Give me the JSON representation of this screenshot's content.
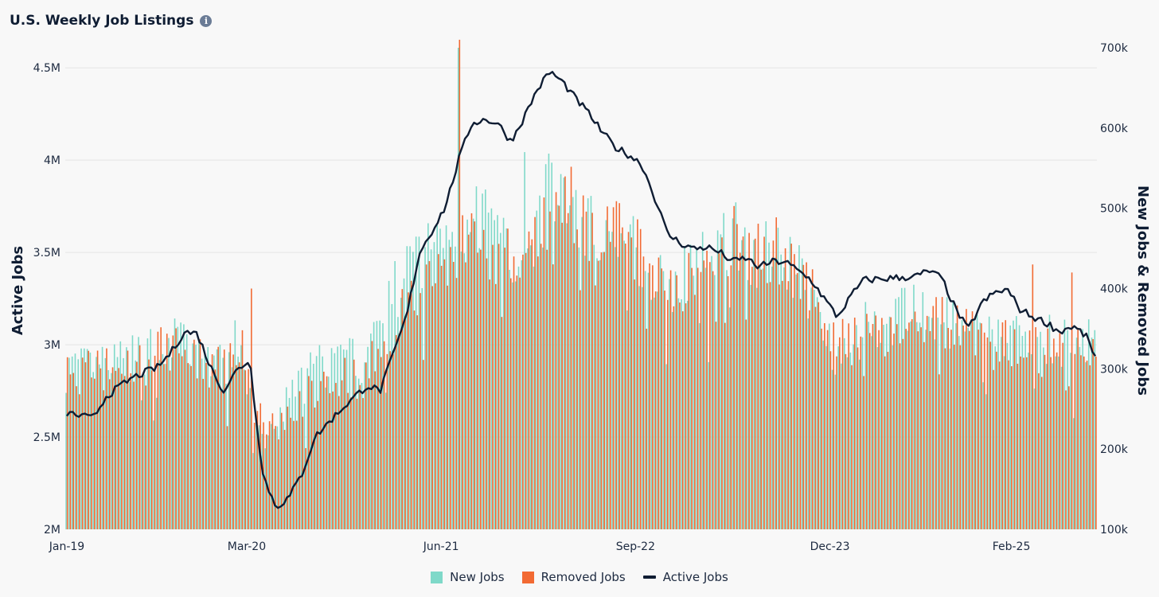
{
  "header": {
    "title": "U.S. Weekly Job Listings",
    "info_icon": "info-icon"
  },
  "colors": {
    "new_jobs": "#7fd9c9",
    "removed_jobs": "#f26a33",
    "active_jobs": "#0f1d33",
    "grid": "#e4e4e4"
  },
  "legend": {
    "items": [
      {
        "label": "New Jobs",
        "color": "#7fd9c9",
        "shape": "box"
      },
      {
        "label": "Removed Jobs",
        "color": "#f26a33",
        "shape": "box"
      },
      {
        "label": "Active Jobs",
        "color": "#0f1d33",
        "shape": "line"
      }
    ]
  },
  "chart_data": {
    "type": "bar",
    "combo": "bars (right axis) + line (left axis)",
    "title": "U.S. Weekly Job Listings",
    "frequency": "weekly",
    "x_ticks": [
      "Jan-19",
      "Mar-20",
      "Jun-21",
      "Sep-22",
      "Dec-23",
      "Feb-25"
    ],
    "ylabel_left": "Active Jobs",
    "ylabel_right": "New Jobs & Removed Jobs",
    "ylim_left": [
      2000000,
      4600000
    ],
    "ylim_right": [
      100000,
      700000
    ],
    "left_ticks": [
      {
        "v": 2000000,
        "label": "2M"
      },
      {
        "v": 2500000,
        "label": "2.5M"
      },
      {
        "v": 3000000,
        "label": "3M"
      },
      {
        "v": 3500000,
        "label": "3.5M"
      },
      {
        "v": 4000000,
        "label": "4M"
      },
      {
        "v": 4500000,
        "label": "4.5M"
      }
    ],
    "right_ticks": [
      {
        "v": 100000,
        "label": "100k"
      },
      {
        "v": 200000,
        "label": "200k"
      },
      {
        "v": 300000,
        "label": "300k"
      },
      {
        "v": 400000,
        "label": "400k"
      },
      {
        "v": 500000,
        "label": "500k"
      },
      {
        "v": 600000,
        "label": "600k"
      },
      {
        "v": 700000,
        "label": "700k"
      }
    ],
    "grid": true,
    "legend_position": "bottom-center",
    "series": [
      {
        "name": "New Jobs",
        "axis": "right",
        "keyframes": [
          [
            "Jan-19",
            300000
          ],
          [
            "Mar-19",
            300000
          ],
          [
            "Jun-19",
            310000
          ],
          [
            "Sep-19",
            340000
          ],
          [
            "Nov-19",
            320000
          ],
          [
            "Jan-20",
            300000
          ],
          [
            "Feb-20",
            330000
          ],
          [
            "Mar-20",
            280000
          ],
          [
            "Apr-20",
            200000
          ],
          [
            "Jun-20",
            260000
          ],
          [
            "Aug-20",
            300000
          ],
          [
            "Oct-20",
            310000
          ],
          [
            "Dec-20",
            310000
          ],
          [
            "Jan-21",
            360000
          ],
          [
            "Mar-21",
            420000
          ],
          [
            "Jun-21",
            470000
          ],
          [
            "Jul-21",
            490000
          ],
          [
            "Aug-21",
            470000
          ],
          [
            "Sep-21",
            500000
          ],
          [
            "Oct-21",
            460000
          ],
          [
            "Dec-21",
            440000
          ],
          [
            "Feb-22",
            520000
          ],
          [
            "Mar-22",
            530000
          ],
          [
            "Apr-22",
            490000
          ],
          [
            "Jun-22",
            470000
          ],
          [
            "Aug-22",
            460000
          ],
          [
            "Sep-22",
            440000
          ],
          [
            "Nov-22",
            400000
          ],
          [
            "Jan-23",
            420000
          ],
          [
            "Mar-23",
            450000
          ],
          [
            "Apr-23",
            470000
          ],
          [
            "Jun-23",
            440000
          ],
          [
            "Jul-23",
            450000
          ],
          [
            "Sep-23",
            420000
          ],
          [
            "Oct-23",
            390000
          ],
          [
            "Dec-23",
            320000
          ],
          [
            "Feb-24",
            350000
          ],
          [
            "Apr-24",
            360000
          ],
          [
            "Jun-24",
            370000
          ],
          [
            "Aug-24",
            360000
          ],
          [
            "Oct-24",
            340000
          ],
          [
            "Dec-24",
            340000
          ],
          [
            "Feb-25",
            340000
          ],
          [
            "Apr-25",
            340000
          ],
          [
            "Jun-25",
            330000
          ],
          [
            "Aug-25",
            330000
          ]
        ],
        "spikes": [
          [
            "Jul-21",
            700000
          ],
          [
            "Dec-21",
            570000
          ]
        ]
      },
      {
        "name": "Removed Jobs",
        "axis": "right",
        "keyframes": [
          [
            "Jan-19",
            290000
          ],
          [
            "Mar-19",
            300000
          ],
          [
            "Jun-19",
            300000
          ],
          [
            "Sep-19",
            330000
          ],
          [
            "Nov-19",
            310000
          ],
          [
            "Jan-20",
            300000
          ],
          [
            "Feb-20",
            310000
          ],
          [
            "Mar-20",
            330000
          ],
          [
            "Apr-20",
            220000
          ],
          [
            "Jun-20",
            240000
          ],
          [
            "Aug-20",
            280000
          ],
          [
            "Oct-20",
            290000
          ],
          [
            "Dec-20",
            290000
          ],
          [
            "Jan-21",
            340000
          ],
          [
            "Mar-21",
            380000
          ],
          [
            "Jun-21",
            430000
          ],
          [
            "Jul-21",
            460000
          ],
          [
            "Aug-21",
            460000
          ],
          [
            "Sep-21",
            470000
          ],
          [
            "Oct-21",
            440000
          ],
          [
            "Dec-21",
            430000
          ],
          [
            "Feb-22",
            500000
          ],
          [
            "Mar-22",
            520000
          ],
          [
            "Apr-22",
            490000
          ],
          [
            "Jun-22",
            470000
          ],
          [
            "Aug-22",
            460000
          ],
          [
            "Sep-22",
            450000
          ],
          [
            "Nov-22",
            410000
          ],
          [
            "Jan-23",
            410000
          ],
          [
            "Mar-23",
            440000
          ],
          [
            "Apr-23",
            460000
          ],
          [
            "Jun-23",
            450000
          ],
          [
            "Jul-23",
            450000
          ],
          [
            "Sep-23",
            430000
          ],
          [
            "Oct-23",
            400000
          ],
          [
            "Dec-23",
            330000
          ],
          [
            "Feb-24",
            340000
          ],
          [
            "Apr-24",
            350000
          ],
          [
            "Jun-24",
            360000
          ],
          [
            "Aug-24",
            360000
          ],
          [
            "Oct-24",
            340000
          ],
          [
            "Dec-24",
            330000
          ],
          [
            "Feb-25",
            330000
          ],
          [
            "Apr-25",
            320000
          ],
          [
            "Jun-25",
            330000
          ],
          [
            "Aug-25",
            330000
          ]
        ],
        "spikes": [
          [
            "Jul-21",
            710000
          ],
          [
            "Mar-20",
            400000
          ],
          [
            "Mar-25",
            430000
          ],
          [
            "Jun-25",
            420000
          ]
        ]
      },
      {
        "name": "Active Jobs",
        "axis": "left",
        "keyframes": [
          [
            "Jan-19",
            2630000
          ],
          [
            "Mar-19",
            2600000
          ],
          [
            "Apr-19",
            2720000
          ],
          [
            "Jun-19",
            2820000
          ],
          [
            "Aug-19",
            2880000
          ],
          [
            "Sep-19",
            2960000
          ],
          [
            "Oct-19",
            3070000
          ],
          [
            "Nov-19",
            3060000
          ],
          [
            "Dec-19",
            2880000
          ],
          [
            "Jan-20",
            2750000
          ],
          [
            "Feb-20",
            2860000
          ],
          [
            "Mar-20",
            2920000
          ],
          [
            "Apr-20",
            2300000
          ],
          [
            "May-20",
            2120000
          ],
          [
            "Jun-20",
            2170000
          ],
          [
            "Jul-20",
            2300000
          ],
          [
            "Aug-20",
            2500000
          ],
          [
            "Oct-20",
            2650000
          ],
          [
            "Dec-20",
            2780000
          ],
          [
            "Jan-21",
            2750000
          ],
          [
            "Feb-21",
            2950000
          ],
          [
            "Mar-21",
            3150000
          ],
          [
            "Apr-21",
            3500000
          ],
          [
            "May-21",
            3620000
          ],
          [
            "Jun-21",
            3750000
          ],
          [
            "Jul-21",
            4000000
          ],
          [
            "Aug-21",
            4200000
          ],
          [
            "Sep-21",
            4220000
          ],
          [
            "Oct-21",
            4200000
          ],
          [
            "Nov-21",
            4100000
          ],
          [
            "Dec-21",
            4230000
          ],
          [
            "Jan-22",
            4380000
          ],
          [
            "Feb-22",
            4480000
          ],
          [
            "Mar-22",
            4420000
          ],
          [
            "Apr-22",
            4330000
          ],
          [
            "May-22",
            4250000
          ],
          [
            "Jun-22",
            4150000
          ],
          [
            "Jul-22",
            4070000
          ],
          [
            "Aug-22",
            4030000
          ],
          [
            "Sep-22",
            3980000
          ],
          [
            "Oct-22",
            3800000
          ],
          [
            "Nov-22",
            3600000
          ],
          [
            "Dec-22",
            3550000
          ],
          [
            "Jan-23",
            3520000
          ],
          [
            "Feb-23",
            3530000
          ],
          [
            "Mar-23",
            3500000
          ],
          [
            "Apr-23",
            3450000
          ],
          [
            "May-23",
            3470000
          ],
          [
            "Jun-23",
            3420000
          ],
          [
            "Jul-23",
            3450000
          ],
          [
            "Aug-23",
            3450000
          ],
          [
            "Sep-23",
            3400000
          ],
          [
            "Oct-23",
            3350000
          ],
          [
            "Nov-23",
            3250000
          ],
          [
            "Dec-23",
            3150000
          ],
          [
            "Jan-24",
            3260000
          ],
          [
            "Feb-24",
            3350000
          ],
          [
            "Apr-24",
            3360000
          ],
          [
            "Jun-24",
            3370000
          ],
          [
            "Jul-24",
            3400000
          ],
          [
            "Aug-24",
            3360000
          ],
          [
            "Sep-24",
            3200000
          ],
          [
            "Oct-24",
            3080000
          ],
          [
            "Nov-24",
            3220000
          ],
          [
            "Dec-24",
            3280000
          ],
          [
            "Jan-25",
            3300000
          ],
          [
            "Feb-25",
            3190000
          ],
          [
            "Mar-25",
            3150000
          ],
          [
            "Apr-25",
            3120000
          ],
          [
            "May-25",
            3070000
          ],
          [
            "Jun-25",
            3100000
          ],
          [
            "Jul-25",
            3050000
          ],
          [
            "Aug-25",
            2900000
          ]
        ]
      }
    ]
  }
}
